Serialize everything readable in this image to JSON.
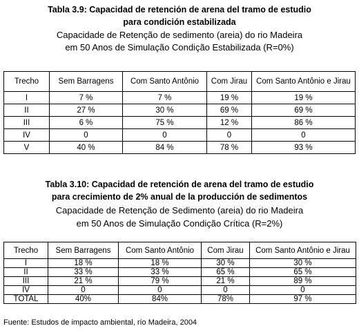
{
  "table1": {
    "title_line1": "Tabla 3.9: Capacidad de retención de arena del tramo de estudio",
    "title_line2": "para condición estabilizada",
    "subtitle_line1": "Capacidade de Retenção de sedimento (areia) do rio Madeira",
    "subtitle_line2": "em 50 Anos de Simulação Condição Estabilizada (R=0%)",
    "headers": [
      "Trecho",
      "Sem Barragens",
      "Com Santo Antônio",
      "Com Jirau",
      "Com Santo Antônio e Jirau"
    ],
    "rows": [
      [
        "I",
        "7 %",
        "7 %",
        "19 %",
        "19 %"
      ],
      [
        "II",
        "27 %",
        "30 %",
        "69 %",
        "69 %"
      ],
      [
        "III",
        "6 %",
        "75 %",
        "12 %",
        "86 %"
      ],
      [
        "IV",
        "0",
        "0",
        "0",
        "0"
      ],
      [
        "V",
        "40 %",
        "84 %",
        "78 %",
        "93 %"
      ]
    ]
  },
  "table2": {
    "title_line1": "Tabla 3.10: Capacidad de retención de arena del tramo de estudio",
    "title_line2": "para crecimiento de 2% anual de la producción de sedimentos",
    "subtitle_line1": "Capacidade de Retenção de Sedimento (areia) do rio Madeira",
    "subtitle_line2": "em 50 Anos de Simulação Condição Crítica (R=2%)",
    "headers": [
      "Trecho",
      "Sem Barragens",
      "Com Santo Antônio",
      "Com Jirau",
      "Com Santo Antônio e Jirau"
    ],
    "rows": [
      [
        "I",
        "18 %",
        "18 %",
        "30 %",
        "30 %"
      ],
      [
        "II",
        "33 %",
        "33 %",
        "65 %",
        "65 %"
      ],
      [
        "III",
        "21 %",
        "79 %",
        "21 %",
        "89 %"
      ],
      [
        "IV",
        "0",
        "0",
        "0",
        "0"
      ],
      [
        "TOTAL",
        "40%",
        "84%",
        "78%",
        "97 %"
      ]
    ]
  },
  "source": "Fuente: Estudos de impacto ambiental, río Madeira, 2004"
}
